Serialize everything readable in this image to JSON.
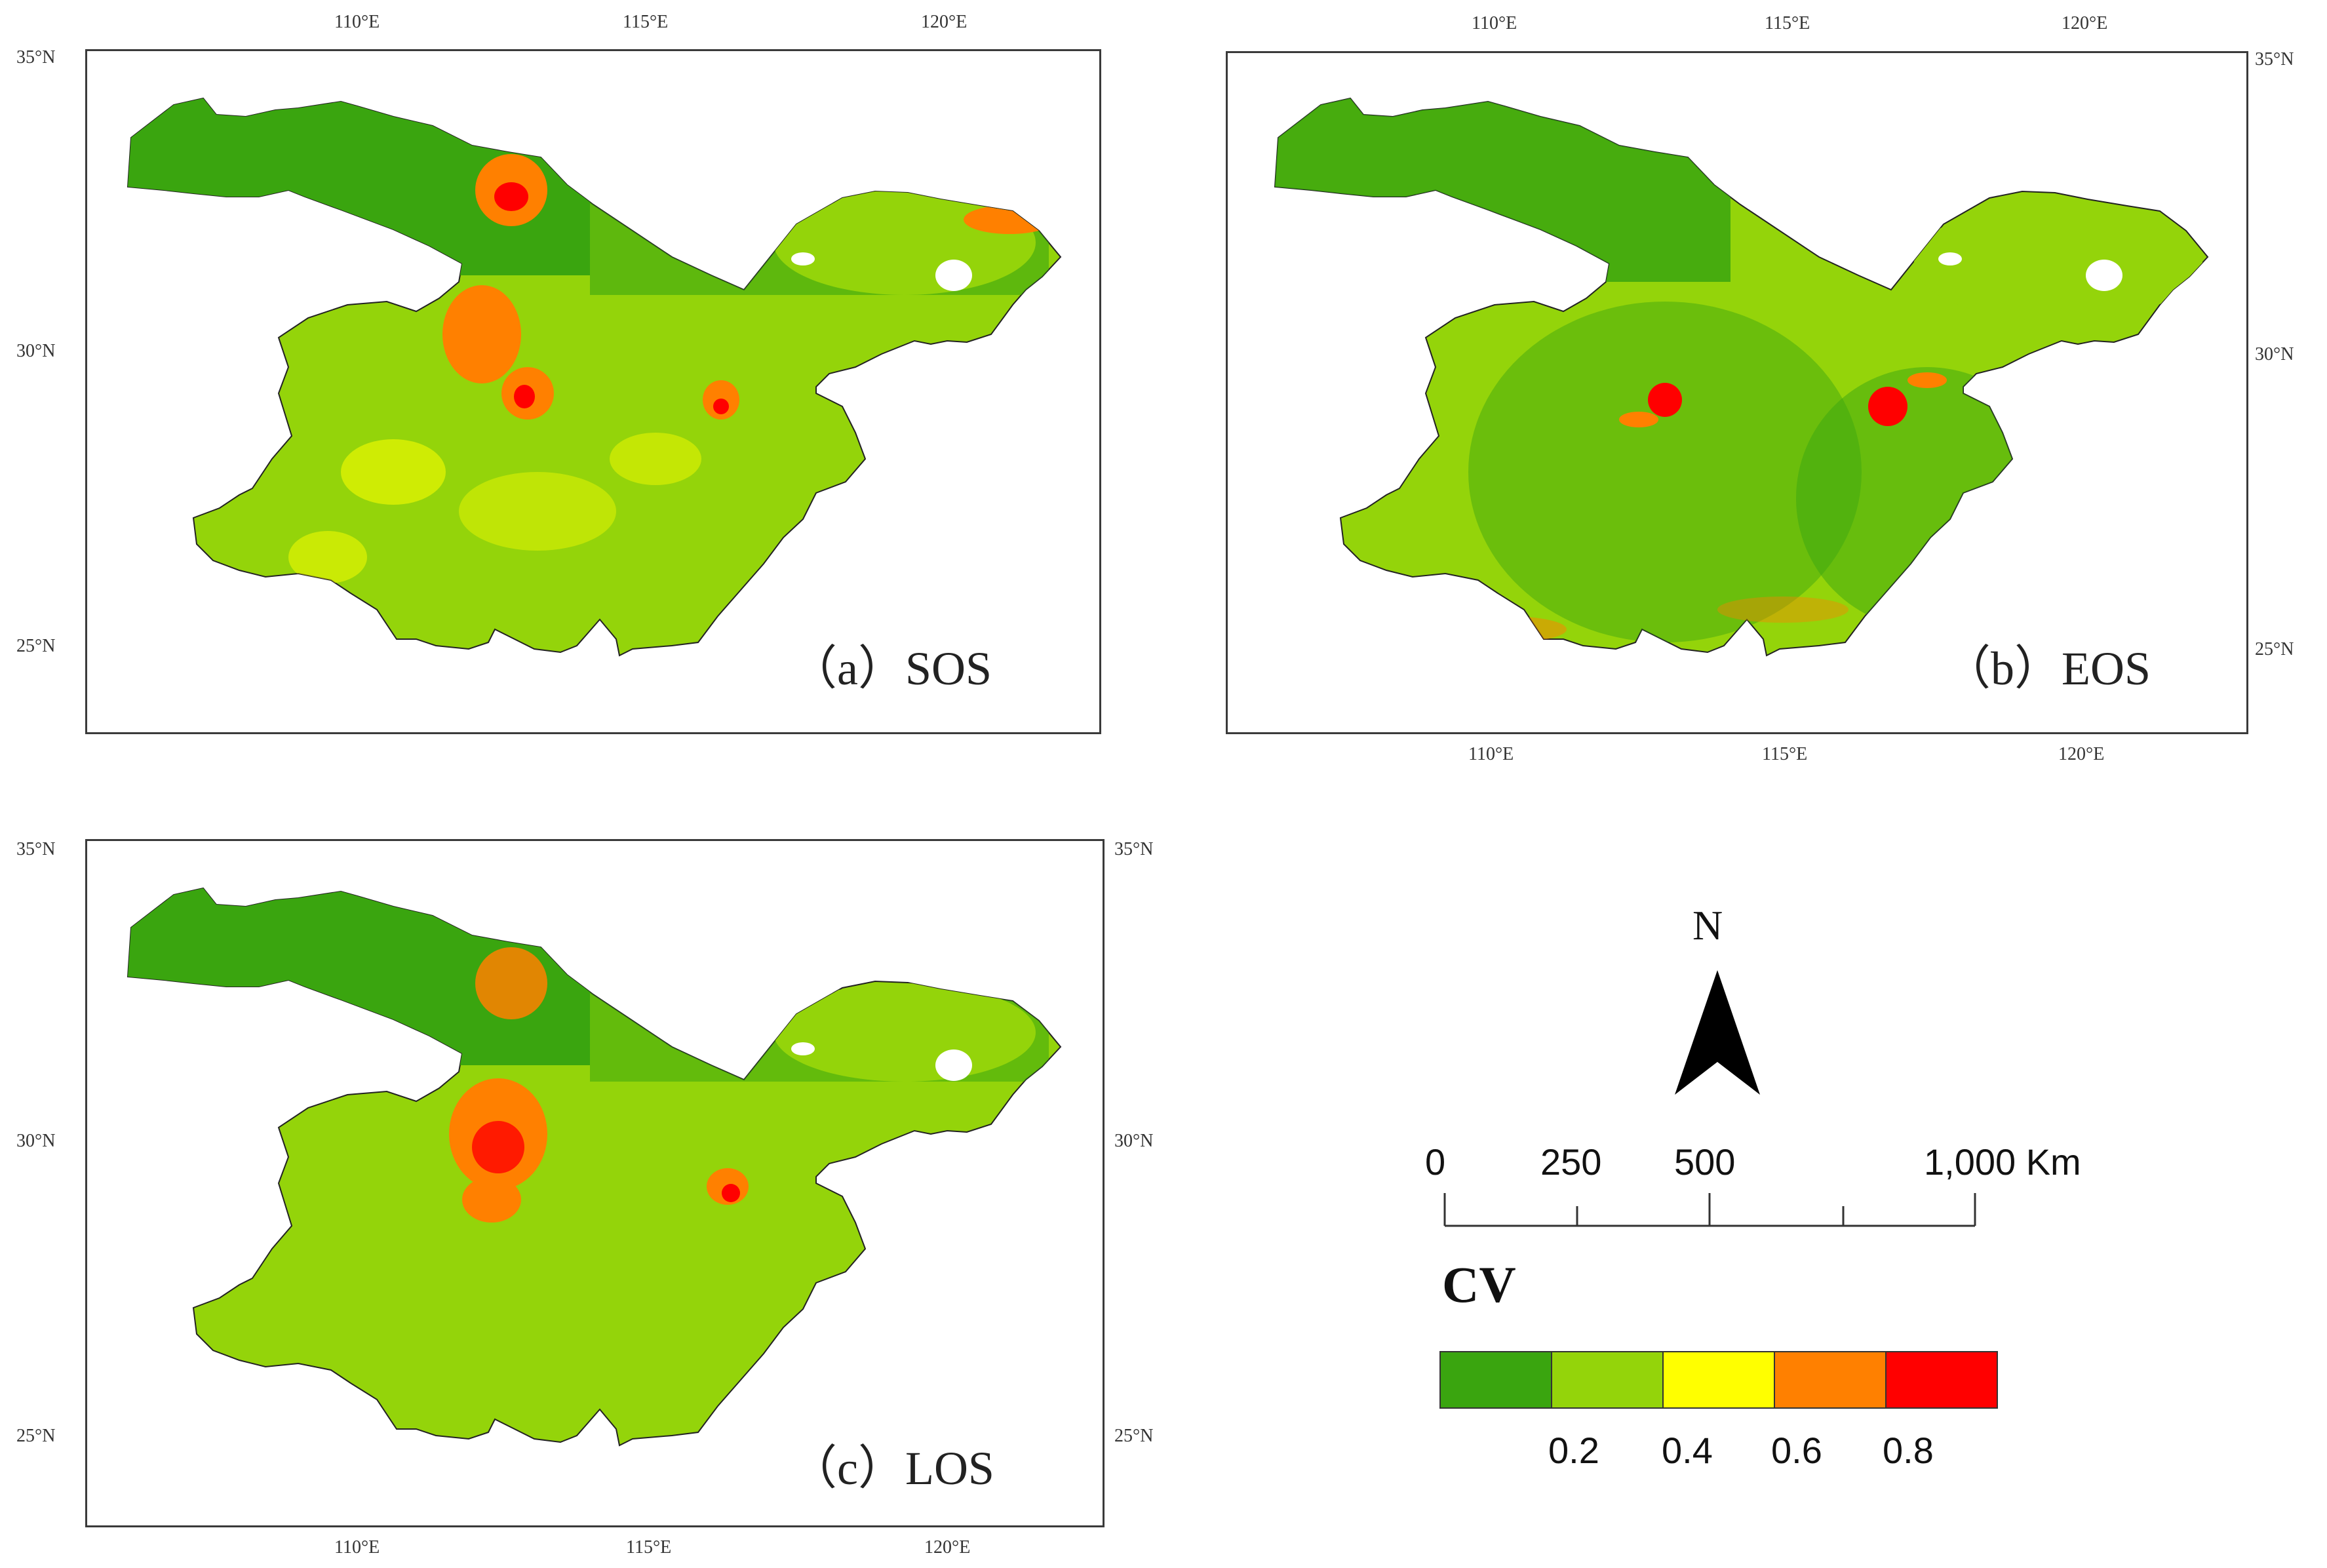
{
  "panels": [
    {
      "id": "a",
      "label": "（a）SOS",
      "top_lon_ticks": [
        "110°E",
        "115°E",
        "120°E"
      ],
      "bottom_lon_ticks": [],
      "left_lat_ticks": [
        "35°N",
        "30°N",
        "25°N"
      ],
      "right_lat_ticks": []
    },
    {
      "id": "b",
      "label": "（b）EOS",
      "top_lon_ticks": [
        "110°E",
        "115°E",
        "120°E"
      ],
      "bottom_lon_ticks": [
        "110°E",
        "115°E",
        "120°E"
      ],
      "left_lat_ticks": [],
      "right_lat_ticks": [
        "35°N",
        "30°N",
        "25°N"
      ]
    },
    {
      "id": "c",
      "label": "（c）LOS",
      "top_lon_ticks": [],
      "bottom_lon_ticks": [
        "110°E",
        "115°E",
        "120°E"
      ],
      "left_lat_ticks": [
        "35°N",
        "30°N",
        "25°N"
      ],
      "right_lat_ticks": [
        "35°N",
        "30°N",
        "25°N"
      ]
    }
  ],
  "north_arrow": {
    "label": "N"
  },
  "scale_bar": {
    "labels": [
      "0",
      "250",
      "500",
      "1,000 Km"
    ]
  },
  "legend": {
    "title": "CV",
    "colors": [
      "#3aa50f",
      "#94d40a",
      "#ffff00",
      "#ff8000",
      "#ff0000"
    ],
    "labels": [
      "0.2",
      "0.4",
      "0.6",
      "0.8"
    ]
  },
  "colors": {
    "dark_green": "#3aa50f",
    "light_green": "#94d40a",
    "yellow": "#ffff00",
    "orange": "#ff8000",
    "red": "#ff0000"
  }
}
